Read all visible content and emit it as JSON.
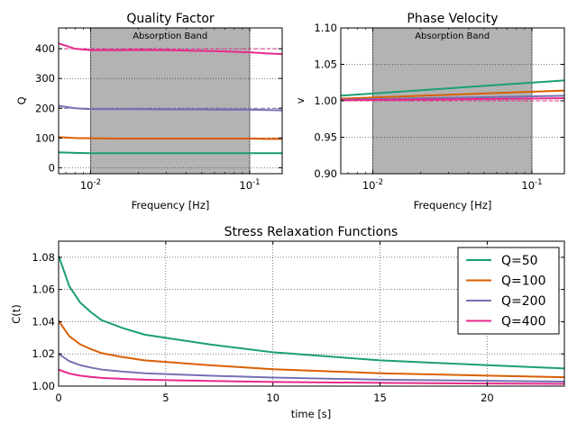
{
  "chart_data": [
    {
      "id": "quality",
      "type": "line",
      "title": "Quality Factor",
      "xlabel": "Frequency [Hz]",
      "ylabel": "Q",
      "xscale": "log",
      "xlim": [
        0.0063,
        0.16
      ],
      "ylim": [
        -20,
        470
      ],
      "x_ticks": [
        {
          "value": 0.01,
          "base": "10",
          "exp": "-2"
        },
        {
          "value": 0.1,
          "base": "10",
          "exp": "-1"
        }
      ],
      "y_ticks": [
        {
          "value": 0,
          "label": "0"
        },
        {
          "value": 100,
          "label": "100"
        },
        {
          "value": 200,
          "label": "200"
        },
        {
          "value": 300,
          "label": "300"
        },
        {
          "value": 400,
          "label": "400"
        }
      ],
      "band": {
        "x": [
          0.01,
          0.1
        ],
        "label": "Absorption Band",
        "color": "#b3b3b3"
      },
      "grid": true,
      "series": [
        {
          "color": "#1b9e77",
          "x": [
            0.0063,
            0.008,
            0.01,
            0.015,
            0.02,
            0.03,
            0.05,
            0.07,
            0.1,
            0.13,
            0.16
          ],
          "values": [
            52,
            50,
            49,
            49,
            49,
            49,
            49,
            49,
            49,
            49,
            49
          ],
          "reference": 50
        },
        {
          "color": "#d95f02",
          "x": [
            0.0063,
            0.008,
            0.01,
            0.015,
            0.02,
            0.03,
            0.05,
            0.07,
            0.1,
            0.13,
            0.16
          ],
          "values": [
            103,
            100,
            99,
            98,
            98,
            98,
            98,
            98,
            98,
            97,
            97
          ],
          "reference": 100
        },
        {
          "color": "#7570b3",
          "x": [
            0.0063,
            0.008,
            0.01,
            0.015,
            0.02,
            0.03,
            0.05,
            0.07,
            0.1,
            0.13,
            0.16
          ],
          "values": [
            208,
            200,
            197,
            197,
            197,
            196,
            196,
            195,
            195,
            194,
            193
          ],
          "reference": 200
        },
        {
          "color": "#e7298a",
          "x": [
            0.0063,
            0.007,
            0.008,
            0.01,
            0.015,
            0.02,
            0.03,
            0.05,
            0.07,
            0.1,
            0.13,
            0.16
          ],
          "values": [
            418,
            410,
            400,
            395,
            395,
            396,
            395,
            393,
            391,
            388,
            384,
            382
          ],
          "reference": 400
        }
      ]
    },
    {
      "id": "velocity",
      "type": "line",
      "title": "Phase Velocity",
      "xlabel": "Frequency [Hz]",
      "ylabel": "v",
      "xscale": "log",
      "xlim": [
        0.0063,
        0.16
      ],
      "ylim": [
        0.9,
        1.1
      ],
      "x_ticks": [
        {
          "value": 0.01,
          "base": "10",
          "exp": "-2"
        },
        {
          "value": 0.1,
          "base": "10",
          "exp": "-1"
        }
      ],
      "y_ticks": [
        {
          "value": 0.9,
          "label": "0.90"
        },
        {
          "value": 0.95,
          "label": "0.95"
        },
        {
          "value": 1.0,
          "label": "1.00"
        },
        {
          "value": 1.05,
          "label": "1.05"
        },
        {
          "value": 1.1,
          "label": "1.10"
        }
      ],
      "band": {
        "x": [
          0.01,
          0.1
        ],
        "label": "Absorption Band",
        "color": "#b3b3b3"
      },
      "grid": true,
      "reference_line": 1.0,
      "series": [
        {
          "color": "#1b9e77",
          "x": [
            0.0063,
            0.16
          ],
          "values": [
            1.007,
            1.028
          ]
        },
        {
          "color": "#d95f02",
          "x": [
            0.0063,
            0.16
          ],
          "values": [
            1.003,
            1.014
          ]
        },
        {
          "color": "#7570b3",
          "x": [
            0.0063,
            0.16
          ],
          "values": [
            1.0015,
            1.007
          ]
        },
        {
          "color": "#e7298a",
          "x": [
            0.0063,
            0.16
          ],
          "values": [
            1.0007,
            1.0035
          ]
        }
      ]
    },
    {
      "id": "relaxation",
      "type": "line",
      "title": "Stress Relaxation Functions",
      "xlabel": "time [s]",
      "ylabel": "C(t)",
      "xlim": [
        0,
        23.6
      ],
      "ylim": [
        1.0,
        1.09
      ],
      "x_ticks": [
        {
          "value": 0,
          "label": "0"
        },
        {
          "value": 5,
          "label": "5"
        },
        {
          "value": 10,
          "label": "10"
        },
        {
          "value": 15,
          "label": "15"
        },
        {
          "value": 20,
          "label": "20"
        }
      ],
      "y_ticks": [
        {
          "value": 1.0,
          "label": "1.00"
        },
        {
          "value": 1.02,
          "label": "1.02"
        },
        {
          "value": 1.04,
          "label": "1.04"
        },
        {
          "value": 1.06,
          "label": "1.06"
        },
        {
          "value": 1.08,
          "label": "1.08"
        }
      ],
      "grid": true,
      "legend_position": "top-right",
      "series": [
        {
          "name": "Q=50",
          "color": "#1b9e77",
          "x": [
            0,
            0.5,
            1,
            1.5,
            2,
            3,
            4,
            5,
            7,
            10,
            15,
            20,
            23.6
          ],
          "values": [
            1.081,
            1.062,
            1.052,
            1.046,
            1.041,
            1.036,
            1.032,
            1.03,
            1.026,
            1.021,
            1.016,
            1.013,
            1.011
          ]
        },
        {
          "name": "Q=100",
          "color": "#d95f02",
          "x": [
            0,
            0.5,
            1,
            1.5,
            2,
            3,
            4,
            5,
            7,
            10,
            15,
            20,
            23.6
          ],
          "values": [
            1.0405,
            1.031,
            1.026,
            1.023,
            1.0205,
            1.018,
            1.016,
            1.015,
            1.013,
            1.0105,
            1.008,
            1.0065,
            1.0055
          ]
        },
        {
          "name": "Q=200",
          "color": "#7570b3",
          "x": [
            0,
            0.5,
            1,
            1.5,
            2,
            3,
            4,
            5,
            7,
            10,
            15,
            20,
            23.6
          ],
          "values": [
            1.02,
            1.0155,
            1.013,
            1.0115,
            1.0103,
            1.009,
            1.008,
            1.0075,
            1.0065,
            1.0053,
            1.004,
            1.0033,
            1.0028
          ]
        },
        {
          "name": "Q=400",
          "color": "#e7298a",
          "x": [
            0,
            0.5,
            1,
            1.5,
            2,
            3,
            4,
            5,
            7,
            10,
            15,
            20,
            23.6
          ],
          "values": [
            1.0102,
            1.0078,
            1.0065,
            1.0057,
            1.0051,
            1.0045,
            1.004,
            1.0037,
            1.0032,
            1.0026,
            1.002,
            1.0016,
            1.0014
          ]
        }
      ]
    }
  ]
}
